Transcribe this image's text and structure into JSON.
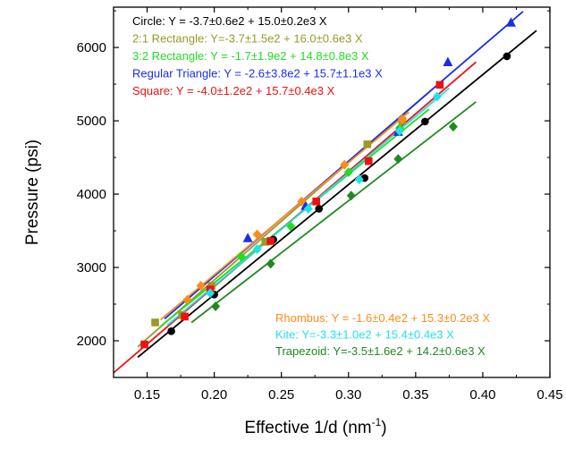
{
  "chart_data": {
    "type": "scatter",
    "xlabel": "Effective 1/d (nm",
    "xlabel_superscript": "-1",
    "xlabel_suffix": ")",
    "ylabel": "Pressure (psi)",
    "xlim": [
      0.125,
      0.45
    ],
    "ylim": [
      1500,
      6550
    ],
    "x_ticks": [
      0.15,
      0.2,
      0.25,
      0.3,
      0.35,
      0.4,
      0.45
    ],
    "x_tick_labels": [
      "0.15",
      "0.20",
      "0.25",
      "0.30",
      "0.35",
      "0.40",
      "0.45"
    ],
    "y_ticks": [
      2000,
      3000,
      4000,
      5000,
      6000
    ],
    "y_tick_labels": [
      "2000",
      "3000",
      "4000",
      "5000",
      "6000"
    ],
    "grid": false,
    "series": [
      {
        "name": "Circle",
        "legend": "Circle: Y = -3.7±0.6e2 + 15.0±0.2e3 X",
        "color": "#000000",
        "marker": "circle",
        "fit": {
          "intercept": -370,
          "slope": 15000,
          "x_range": [
            0.143,
            0.44
          ]
        },
        "points": [
          [
            0.168,
            2130
          ],
          [
            0.2,
            2630
          ],
          [
            0.244,
            3380
          ],
          [
            0.278,
            3800
          ],
          [
            0.312,
            4220
          ],
          [
            0.357,
            4990
          ],
          [
            0.418,
            5880
          ]
        ]
      },
      {
        "name": "2:1 Rectangle",
        "legend": "2:1 Rectangle: Y=-3.7±1.5e2 + 16.0±0.6e3 X",
        "color": "#9a9a2a",
        "marker": "square",
        "fit": {
          "intercept": -370,
          "slope": 16000,
          "x_range": [
            0.143,
            0.37
          ]
        },
        "points": [
          [
            0.156,
            2250
          ],
          [
            0.176,
            2350
          ],
          [
            0.198,
            2750
          ],
          [
            0.238,
            3350
          ],
          [
            0.276,
            3900
          ],
          [
            0.314,
            4680
          ],
          [
            0.34,
            5000
          ]
        ]
      },
      {
        "name": "3:2 Rectangle",
        "legend": "3:2 Rectangle: Y = -1.7±1.9e2 + 14.8±0.8e3 X",
        "color": "#22dd22",
        "marker": "diamond",
        "fit": {
          "intercept": -170,
          "slope": 14800,
          "x_range": [
            0.16,
            0.36
          ]
        },
        "points": [
          [
            0.18,
            2550
          ],
          [
            0.22,
            3150
          ],
          [
            0.257,
            3560
          ],
          [
            0.3,
            4300
          ],
          [
            0.338,
            4900
          ]
        ]
      },
      {
        "name": "Regular Triangle",
        "legend": "Regular Triangle: Y = -2.6±3.8e2 + 15.7±1.1e3 X",
        "color": "#1a2ee8",
        "marker": "triangle",
        "fit": {
          "intercept": -260,
          "slope": 15700,
          "x_range": [
            0.163,
            0.43
          ]
        },
        "points": [
          [
            0.225,
            3400
          ],
          [
            0.268,
            3840
          ],
          [
            0.337,
            4850
          ],
          [
            0.374,
            5800
          ],
          [
            0.421,
            6340
          ]
        ]
      },
      {
        "name": "Square",
        "legend": "Square: Y = -4.0±1.2e2 + 15.7±0.4e3 X",
        "color": "#ee1111",
        "marker": "square",
        "fit": {
          "intercept": -400,
          "slope": 15700,
          "x_range": [
            0.125,
            0.395
          ]
        },
        "points": [
          [
            0.148,
            1950
          ],
          [
            0.178,
            2330
          ],
          [
            0.197,
            2700
          ],
          [
            0.242,
            3360
          ],
          [
            0.276,
            3900
          ],
          [
            0.315,
            4450
          ],
          [
            0.368,
            5490
          ]
        ]
      },
      {
        "name": "Rhombus",
        "legend": "Rhombus: Y = -1.6±0.4e2 + 15.3±0.2e3 X",
        "color": "#ff8c1a",
        "marker": "diamond",
        "fit": {
          "intercept": -160,
          "slope": 15300,
          "x_range": [
            0.16,
            0.345
          ]
        },
        "points": [
          [
            0.18,
            2560
          ],
          [
            0.19,
            2750
          ],
          [
            0.232,
            3450
          ],
          [
            0.265,
            3900
          ],
          [
            0.297,
            4400
          ],
          [
            0.34,
            5020
          ]
        ]
      },
      {
        "name": "Kite",
        "legend": "Kite: Y=-3.3±1.0e2 + 15.4±0.4e3 X",
        "color": "#22e0e8",
        "marker": "diamond",
        "fit": {
          "intercept": -330,
          "slope": 15400,
          "x_range": [
            0.165,
            0.375
          ]
        },
        "points": [
          [
            0.197,
            2650
          ],
          [
            0.232,
            3250
          ],
          [
            0.27,
            3800
          ],
          [
            0.308,
            4200
          ],
          [
            0.338,
            4860
          ],
          [
            0.366,
            5330
          ]
        ]
      },
      {
        "name": "Trapezoid",
        "legend": "Trapezoid: Y=-3.5±1.6e2 + 14.2±0.6e3 X",
        "color": "#228822",
        "marker": "diamond",
        "fit": {
          "intercept": -350,
          "slope": 14200,
          "x_range": [
            0.183,
            0.395
          ]
        },
        "points": [
          [
            0.201,
            2470
          ],
          [
            0.242,
            3050
          ],
          [
            0.302,
            3980
          ],
          [
            0.337,
            4480
          ],
          [
            0.378,
            4920
          ]
        ]
      }
    ]
  }
}
